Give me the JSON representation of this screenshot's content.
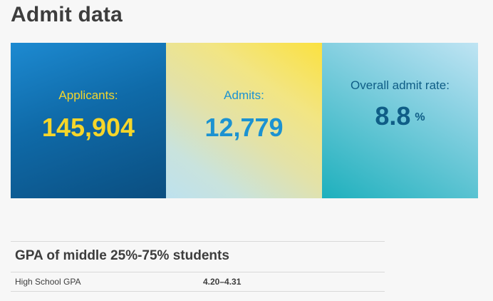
{
  "page": {
    "title": "Admit data"
  },
  "stats": {
    "applicants": {
      "label": "Applicants:",
      "value": "145,904"
    },
    "admits": {
      "label": "Admits:",
      "value": "12,779"
    },
    "admit_rate": {
      "label": "Overall admit rate:",
      "value": "8.8",
      "unit": "%"
    }
  },
  "gpa": {
    "heading": "GPA of middle 25%-75% students",
    "rows": [
      {
        "label": "High School GPA",
        "value": "4.20–4.31"
      }
    ]
  },
  "colors": {
    "applicants_tile": "#0f6aa8",
    "applicants_text": "#f6d62a",
    "admits_tile": "#f2e583",
    "admits_text": "#1c92d1",
    "rate_tile": "#5fc4d3",
    "rate_text": "#0f5d86"
  }
}
